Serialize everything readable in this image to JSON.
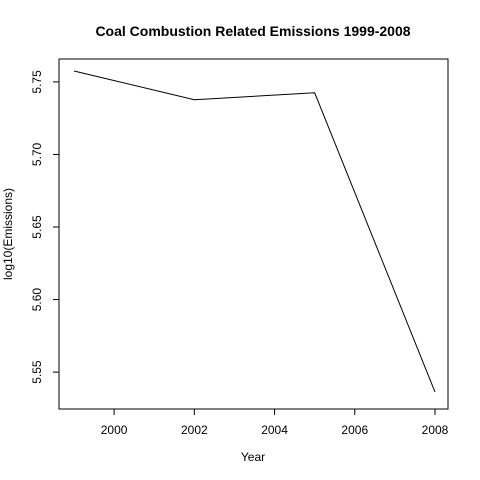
{
  "chart_data": {
    "type": "line",
    "title": "Coal Combustion Related Emissions 1999-2008",
    "xlabel": "Year",
    "ylabel": "log10(Emissions)",
    "x": [
      1999,
      2002,
      2005,
      2008
    ],
    "series": [
      {
        "values": [
          5.7575,
          5.7377,
          5.7425,
          5.5363
        ]
      }
    ],
    "xlim": [
      1999,
      2008
    ],
    "ylim": [
      5.5363,
      5.7575
    ],
    "x_ticks": [
      2000,
      2002,
      2004,
      2006,
      2008
    ],
    "x_tick_labels": [
      "2000",
      "2002",
      "2004",
      "2006",
      "2008"
    ],
    "y_ticks": [
      5.55,
      5.6,
      5.65,
      5.7,
      5.75
    ],
    "y_tick_labels": [
      "5.55",
      "5.60",
      "5.65",
      "5.70",
      "5.75"
    ],
    "line_color": "#000000",
    "grid": false,
    "legend": false
  }
}
